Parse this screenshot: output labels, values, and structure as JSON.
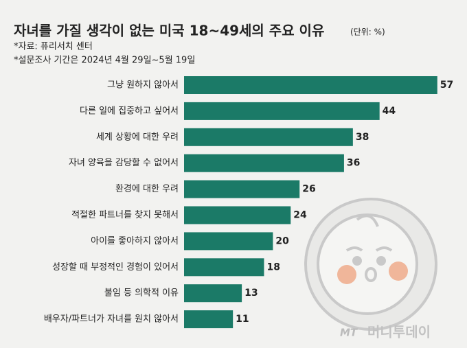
{
  "chart_data": {
    "type": "bar",
    "title": "자녀를 가질 생각이 없는 미국 18~49세의 주요 이유",
    "unit": "(단위: %)",
    "notes": [
      "*자료: 퓨리서치 센터",
      "*설문조사 기간은 2024년 4월 29일~5월 19일"
    ],
    "categories": [
      "그냥 원하지 않아서",
      "다른 일에 집중하고 싶어서",
      "세계 상황에 대한 우려",
      "자녀 양육을 감당할 수 없어서",
      "환경에 대한 우려",
      "적절한 파트너를 찾지 못해서",
      "아이를 좋아하지 않아서",
      "성장할 때 부정적인 경험이 있어서",
      "불임 등 의학적 이유",
      "배우자/파트너가 자녀를 원치 않아서"
    ],
    "values": [
      57,
      44,
      38,
      36,
      26,
      24,
      20,
      18,
      13,
      11
    ],
    "color": "#1b7a67",
    "source_logo": "MT",
    "source_name": "머니투데이"
  }
}
